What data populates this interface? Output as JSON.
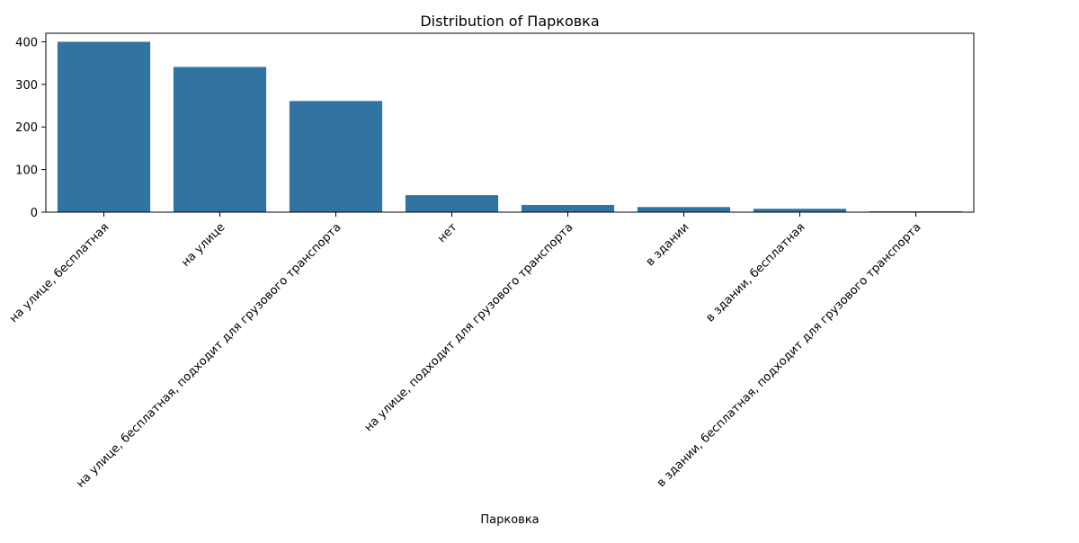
{
  "chart_data": {
    "type": "bar",
    "title": "Distribution of Парковка",
    "xlabel": "Парковка",
    "ylabel": "",
    "categories": [
      "на улице, бесплатная",
      "на улице",
      "на улице, бесплатная, подходит для грузового транспорта",
      "нет",
      "на улице, подходит для грузового транспорта",
      "в здании",
      "в здании, бесплатная",
      "в здании, бесплатная, подходит для грузового транспорта"
    ],
    "values": [
      400,
      341,
      261,
      40,
      17,
      12,
      8,
      2
    ],
    "ylim": [
      0,
      420
    ],
    "yticks": [
      0,
      100,
      200,
      300,
      400
    ],
    "bar_color": "#3274a1",
    "grid": false,
    "legend": "none"
  }
}
